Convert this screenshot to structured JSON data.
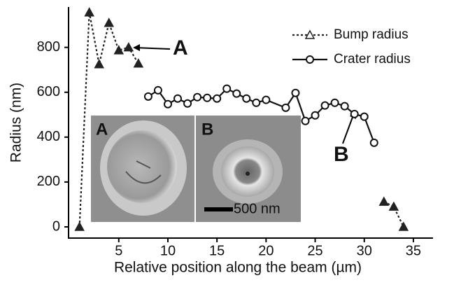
{
  "chart_data": {
    "type": "line",
    "xlabel": "Relative position along the beam (µm)",
    "ylabel": "Radius (nm)",
    "xlim": [
      0,
      37
    ],
    "ylim": [
      -50,
      980
    ],
    "xticks": [
      5,
      10,
      15,
      20,
      25,
      30,
      35
    ],
    "yticks": [
      0,
      200,
      400,
      600,
      800
    ],
    "legend": "upper right",
    "series": [
      {
        "name": "Bump radius",
        "color": "#222222",
        "marker": "triangle",
        "dashed": true,
        "x": [
          1,
          2,
          3,
          4,
          5,
          6,
          7,
          null,
          32,
          33,
          34
        ],
        "values": [
          0,
          956,
          725,
          909,
          787,
          800,
          728,
          null,
          112,
          90,
          0
        ]
      },
      {
        "name": "Crater radius",
        "color": "#111111",
        "marker": "circle",
        "dashed": false,
        "x": [
          8,
          9,
          10,
          11,
          12,
          13,
          14,
          15,
          16,
          17,
          18,
          19,
          20,
          22,
          23,
          24,
          25,
          26,
          27,
          28,
          29,
          30,
          31
        ],
        "values": [
          581,
          609,
          547,
          572,
          550,
          578,
          575,
          572,
          616,
          594,
          572,
          553,
          566,
          531,
          597,
          472,
          497,
          541,
          553,
          538,
          503,
          491,
          375
        ]
      }
    ],
    "annotations": [
      "A",
      "B"
    ],
    "inset": {
      "panel_labels": [
        "A",
        "B"
      ],
      "scale_bar": "500 nm"
    }
  }
}
